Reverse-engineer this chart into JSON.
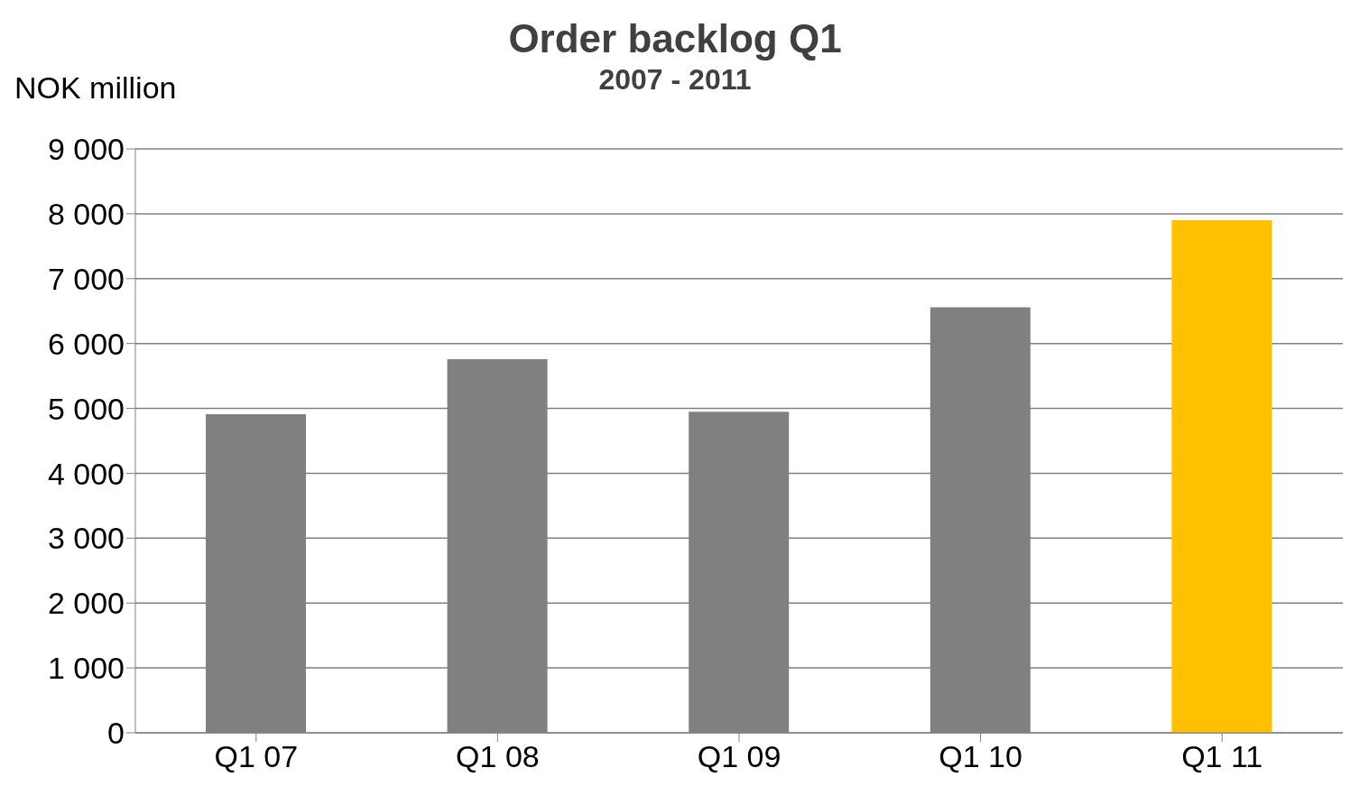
{
  "chart_data": {
    "type": "bar",
    "title": "Order backlog Q1",
    "subtitle": "2007 - 2011",
    "ylabel": "NOK million",
    "categories": [
      "Q1 07",
      "Q1 08",
      "Q1 09",
      "Q1 10",
      "Q1 11"
    ],
    "values": [
      4910,
      5760,
      4950,
      6560,
      7900
    ],
    "colors": [
      "#808080",
      "#808080",
      "#808080",
      "#808080",
      "#ffc000"
    ],
    "ylim": [
      0,
      9000
    ],
    "yticks": [
      {
        "value": 0,
        "label": "0"
      },
      {
        "value": 1000,
        "label": "1 000"
      },
      {
        "value": 2000,
        "label": "2 000"
      },
      {
        "value": 3000,
        "label": "3 000"
      },
      {
        "value": 4000,
        "label": "4 000"
      },
      {
        "value": 5000,
        "label": "5 000"
      },
      {
        "value": 6000,
        "label": "6 000"
      },
      {
        "value": 7000,
        "label": "7 000"
      },
      {
        "value": 8000,
        "label": "8 000"
      },
      {
        "value": 9000,
        "label": "9 000"
      }
    ],
    "grid": "y"
  }
}
